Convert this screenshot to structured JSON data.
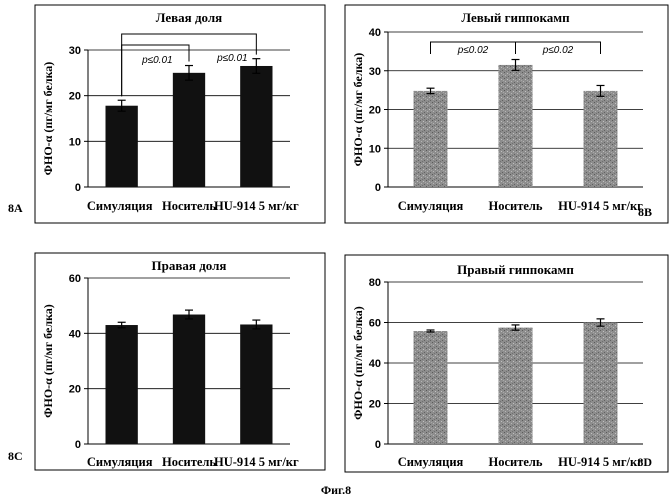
{
  "figure_caption": "Фиг.8",
  "colors": {
    "dark_bar": "#111111",
    "gray_bar": "#8a8a8a"
  },
  "chart_data": [
    {
      "panel_label": "8A",
      "type": "bar",
      "title": "Левая доля",
      "ylabel": "ФНО-α (пг/мг белка)",
      "categories": [
        "Симуляция",
        "Носитель",
        "HU-914 5 мг/кг"
      ],
      "values": [
        17.8,
        25.0,
        26.5
      ],
      "errors": [
        1.2,
        1.6,
        1.6
      ],
      "ylim": [
        0,
        30
      ],
      "yticks": [
        "0",
        "10",
        "20",
        "30"
      ],
      "bar_color": "dark",
      "annotations": [
        {
          "from": 0,
          "to": 1,
          "level": 1,
          "text": "p≤0.01"
        },
        {
          "from": 0,
          "to": 2,
          "level": 2,
          "text": "p≤0.01"
        }
      ]
    },
    {
      "panel_label": "8B",
      "type": "bar",
      "title": "Левый гиппокамп",
      "ylabel": "ФНО-α (пг/мг белка)",
      "categories": [
        "Симуляция",
        "Носитель",
        "HU-914 5 мг/кг"
      ],
      "values": [
        24.8,
        31.5,
        24.8
      ],
      "errors": [
        0.7,
        1.4,
        1.4
      ],
      "ylim": [
        0,
        40
      ],
      "yticks": [
        "0",
        "10",
        "20",
        "30",
        "40"
      ],
      "bar_color": "gray",
      "annotations": [
        {
          "from": 0,
          "to": 1,
          "level": 1,
          "text": "p≤0.02"
        },
        {
          "from": 1,
          "to": 2,
          "level": 1,
          "text": "p≤0.02"
        }
      ]
    },
    {
      "panel_label": "8C",
      "type": "bar",
      "title": "Правая доля",
      "ylabel": "ФНО-α (пг/мг белка)",
      "categories": [
        "Симуляция",
        "Носитель",
        "HU-914 5 мг/кг"
      ],
      "values": [
        43.0,
        46.8,
        43.2
      ],
      "errors": [
        1.0,
        1.6,
        1.6
      ],
      "ylim": [
        0,
        60
      ],
      "yticks": [
        "0",
        "20",
        "40",
        "60"
      ],
      "bar_color": "dark",
      "annotations": []
    },
    {
      "panel_label": "8D",
      "type": "bar",
      "title": "Правый гиппокамп",
      "ylabel": "ФНО-α (пг/мг белка)",
      "categories": [
        "Симуляция",
        "Носитель",
        "HU-914 5 мг/кг"
      ],
      "values": [
        55.8,
        57.5,
        60.0
      ],
      "errors": [
        0.5,
        1.3,
        1.8
      ],
      "ylim": [
        0,
        80
      ],
      "yticks": [
        "0",
        "20",
        "40",
        "60",
        "80"
      ],
      "bar_color": "gray",
      "annotations": []
    }
  ]
}
